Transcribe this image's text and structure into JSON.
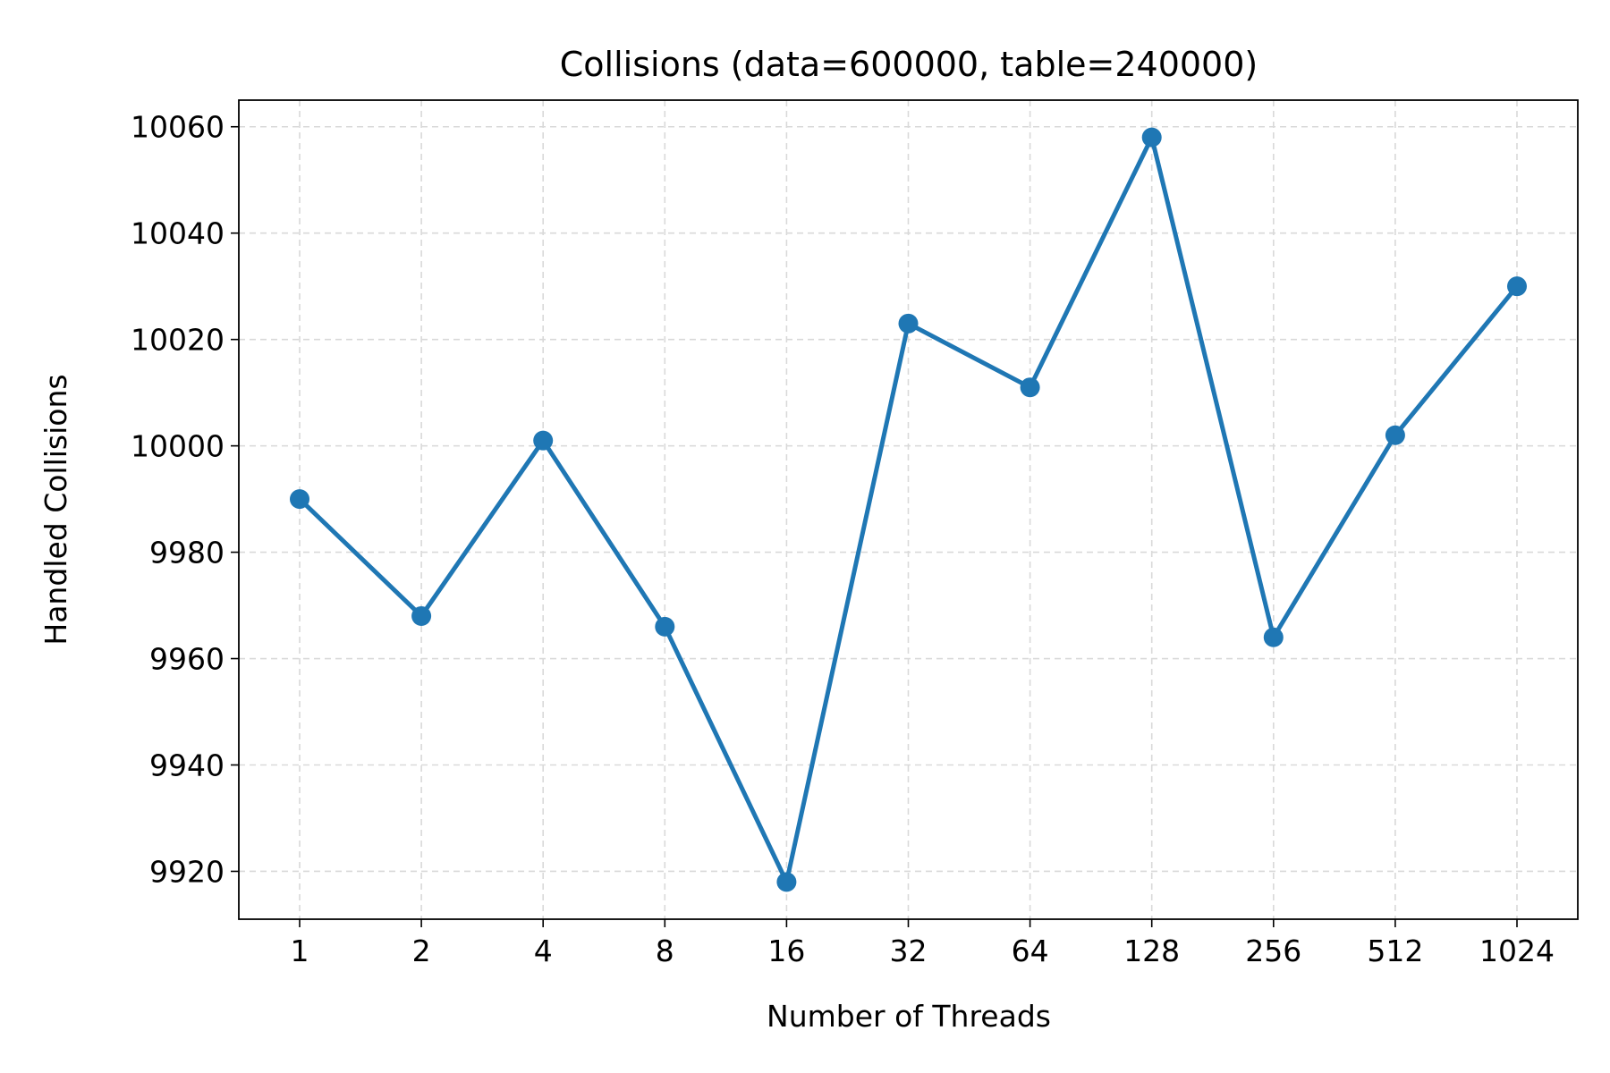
{
  "chart_data": {
    "type": "line",
    "title": "Collisions (data=600000, table=240000)",
    "xlabel": "Number of Threads",
    "ylabel": "Handled Collisions",
    "categories": [
      "1",
      "2",
      "4",
      "8",
      "16",
      "32",
      "64",
      "128",
      "256",
      "512",
      "1024"
    ],
    "series": [
      {
        "values": [
          9990,
          9968,
          10001,
          9966,
          9918,
          10023,
          10011,
          10058,
          9964,
          10002,
          10030
        ],
        "color": "#1f77b4",
        "marker": "circle"
      }
    ],
    "yticks": [
      9920,
      9940,
      9960,
      9980,
      10000,
      10020,
      10040,
      10060
    ],
    "ylim": [
      9911,
      10065
    ],
    "grid": true,
    "grid_style": "dashed"
  }
}
